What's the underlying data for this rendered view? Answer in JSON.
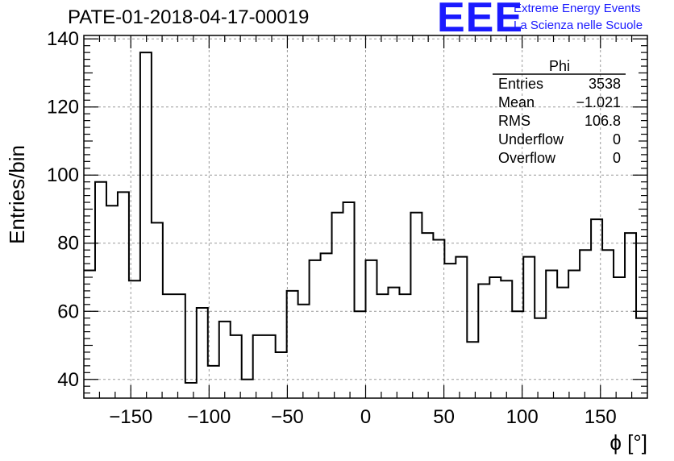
{
  "header": {
    "title": "PATE-01-2018-04-17-00019",
    "logo_text": "EEE",
    "logo_line1": "Extreme Energy Events",
    "logo_line2": "La Scienza nelle Scuole",
    "brand_color": "#1a1aff"
  },
  "stats": {
    "name": "Phi",
    "rows": [
      {
        "label": "Entries",
        "value": "3538"
      },
      {
        "label": "Mean",
        "value": "−1.021"
      },
      {
        "label": "RMS",
        "value": "106.8"
      },
      {
        "label": "Underflow",
        "value": "0"
      },
      {
        "label": "Overflow",
        "value": "0"
      }
    ]
  },
  "chart_data": {
    "type": "bar",
    "histogram": true,
    "title": "PATE-01-2018-04-17-00019",
    "xlabel": "ϕ [°]",
    "ylabel": "Entries/bin",
    "xlim": [
      -180,
      180
    ],
    "ylim": [
      34.5,
      141
    ],
    "bin_width": 7.2,
    "xticks": [
      -150,
      -100,
      -50,
      0,
      50,
      100,
      150
    ],
    "xtick_labels": [
      "−150",
      "−100",
      "−50",
      "0",
      "50",
      "100",
      "150"
    ],
    "yticks": [
      40,
      60,
      80,
      100,
      120,
      140
    ],
    "ytick_labels": [
      "40",
      "60",
      "80",
      "100",
      "120",
      "140"
    ],
    "grid": true,
    "values": [
      72,
      98,
      91,
      95,
      69,
      136,
      86,
      65,
      65,
      39,
      61,
      44,
      57,
      53,
      40,
      53,
      53,
      48,
      66,
      62,
      75,
      77,
      89,
      92,
      60,
      75,
      65,
      67,
      65,
      89,
      83,
      81,
      74,
      76,
      51,
      68,
      70,
      69,
      60,
      76,
      58,
      72,
      67,
      72,
      78,
      87,
      78,
      70,
      83,
      58
    ]
  }
}
